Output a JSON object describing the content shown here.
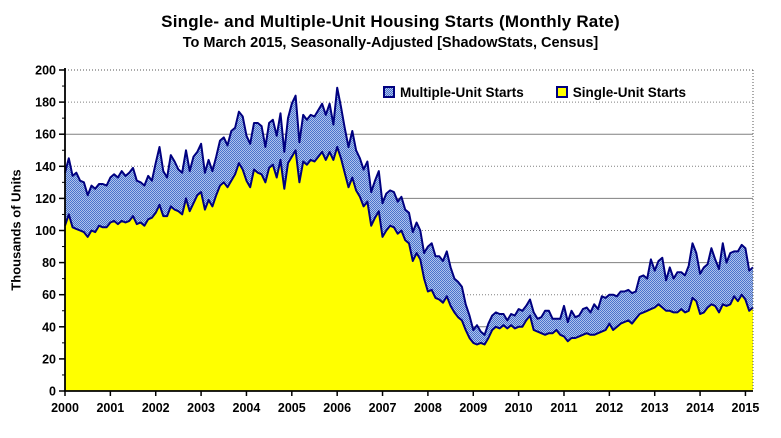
{
  "header": {
    "title": "Single- and Multiple-Unit Housing Starts (Monthly Rate)",
    "subtitle": "To March 2015, Seasonally-Adjusted [ShadowStats, Census]"
  },
  "y_axis": {
    "title": "Thousands of Units",
    "tick_labels": [
      "0",
      "20",
      "40",
      "60",
      "80",
      "100",
      "120",
      "140",
      "160",
      "180",
      "200"
    ]
  },
  "x_axis": {
    "tick_labels": [
      "2000",
      "2001",
      "2002",
      "2003",
      "2004",
      "2005",
      "2006",
      "2007",
      "2008",
      "2009",
      "2010",
      "2011",
      "2012",
      "2013",
      "2014",
      "2015"
    ]
  },
  "legend": {
    "items": [
      {
        "label": "Multiple-Unit Starts",
        "fill_dark": "#4A73CC",
        "fill_light": "#AEC2EC",
        "border": "#000080"
      },
      {
        "label": "Single-Unit Starts",
        "fill": "#FFFF00",
        "border": "#000080"
      }
    ]
  },
  "colors": {
    "single_fill": "#FFFF00",
    "multiple_fill_dark": "#4A73CC",
    "multiple_fill_light": "#AEC2EC",
    "series_edge": "#000080",
    "gridline": "#808080",
    "axis": "#000000",
    "plot_border_dotted": "#555555"
  },
  "chart_data": {
    "type": "area",
    "stacked": true,
    "title": "Single- and Multiple-Unit Housing Starts (Monthly Rate)",
    "subtitle": "To March 2015, Seasonally-Adjusted [ShadowStats, Census]",
    "ylabel": "Thousands of Units",
    "ylim": [
      0,
      200
    ],
    "y_gridline_step": 20,
    "grid": true,
    "legend_position": "top-inside",
    "x_unit": "month",
    "x_start": "2000-01",
    "x_end": "2015-03",
    "x_tick_years": [
      2000,
      2001,
      2002,
      2003,
      2004,
      2005,
      2006,
      2007,
      2008,
      2009,
      2010,
      2011,
      2012,
      2013,
      2014,
      2015
    ],
    "series": [
      {
        "name": "Single-Unit Starts",
        "stack_order": "bottom",
        "color": "#FFFF00",
        "edge_color": "#000080",
        "values": [
          103,
          110,
          102,
          101,
          100,
          99,
          96,
          100,
          99,
          103,
          102,
          102,
          105,
          106,
          104,
          106,
          105,
          106,
          109,
          104,
          105,
          103,
          107,
          108,
          111,
          116,
          109,
          109,
          115,
          113,
          112,
          110,
          120,
          112,
          117,
          122,
          124,
          113,
          119,
          115,
          122,
          128,
          130,
          127,
          131,
          135,
          142,
          138,
          131,
          127,
          138,
          136,
          135,
          130,
          139,
          141,
          133,
          144,
          126,
          142,
          146,
          150,
          130,
          143,
          141,
          144,
          143,
          146,
          149,
          144,
          149,
          144,
          152,
          145,
          136,
          127,
          133,
          125,
          121,
          115,
          118,
          103,
          108,
          112,
          96,
          100,
          103,
          102,
          98,
          100,
          94,
          92,
          81,
          86,
          82,
          70,
          62,
          63,
          58,
          57,
          55,
          59,
          53,
          49,
          46,
          44,
          38,
          33,
          30,
          29,
          30,
          29,
          33,
          38,
          40,
          39,
          41,
          39,
          41,
          39,
          40,
          40,
          44,
          47,
          38,
          37,
          36,
          35,
          36,
          36,
          38,
          35,
          34,
          31,
          33,
          33,
          34,
          35,
          36,
          35,
          35,
          36,
          37,
          38,
          42,
          38,
          40,
          42,
          43,
          44,
          42,
          45,
          48,
          49,
          50,
          51,
          52,
          54,
          52,
          50,
          50,
          49,
          49,
          51,
          49,
          50,
          58,
          56,
          48,
          49,
          52,
          54,
          53,
          49,
          54,
          53,
          54,
          59,
          56,
          60,
          57,
          50,
          52
        ]
      },
      {
        "name": "Multiple-Unit Starts",
        "stack_order": "top",
        "color": "checker(#4A73CC,#AEC2EC)",
        "edge_color": "#000080",
        "values": [
          33,
          35,
          32,
          35,
          31,
          31,
          26,
          28,
          27,
          26,
          27,
          26,
          28,
          29,
          29,
          31,
          29,
          30,
          30,
          27,
          25,
          25,
          27,
          23,
          31,
          36,
          28,
          24,
          32,
          30,
          26,
          26,
          30,
          25,
          29,
          27,
          30,
          23,
          25,
          22,
          24,
          28,
          28,
          26,
          31,
          29,
          32,
          33,
          28,
          27,
          29,
          31,
          30,
          22,
          28,
          28,
          26,
          29,
          23,
          28,
          33,
          34,
          25,
          29,
          28,
          28,
          28,
          29,
          30,
          28,
          30,
          22,
          37,
          32,
          28,
          25,
          29,
          25,
          24,
          23,
          25,
          21,
          23,
          25,
          21,
          23,
          22,
          22,
          20,
          21,
          19,
          19,
          18,
          19,
          18,
          16,
          28,
          29,
          26,
          27,
          26,
          28,
          24,
          21,
          22,
          21,
          16,
          14,
          8,
          12,
          7,
          6,
          9,
          9,
          9,
          9,
          7,
          5,
          7,
          8,
          11,
          10,
          9,
          10,
          11,
          8,
          10,
          15,
          14,
          9,
          7,
          10,
          19,
          12,
          17,
          13,
          13,
          16,
          16,
          14,
          19,
          15,
          22,
          20,
          18,
          22,
          19,
          20,
          19,
          19,
          19,
          17,
          23,
          23,
          20,
          31,
          23,
          27,
          31,
          19,
          27,
          21,
          25,
          23,
          23,
          28,
          34,
          30,
          25,
          28,
          27,
          35,
          29,
          27,
          38,
          27,
          32,
          28,
          31,
          31,
          32,
          25,
          25
        ]
      }
    ]
  }
}
